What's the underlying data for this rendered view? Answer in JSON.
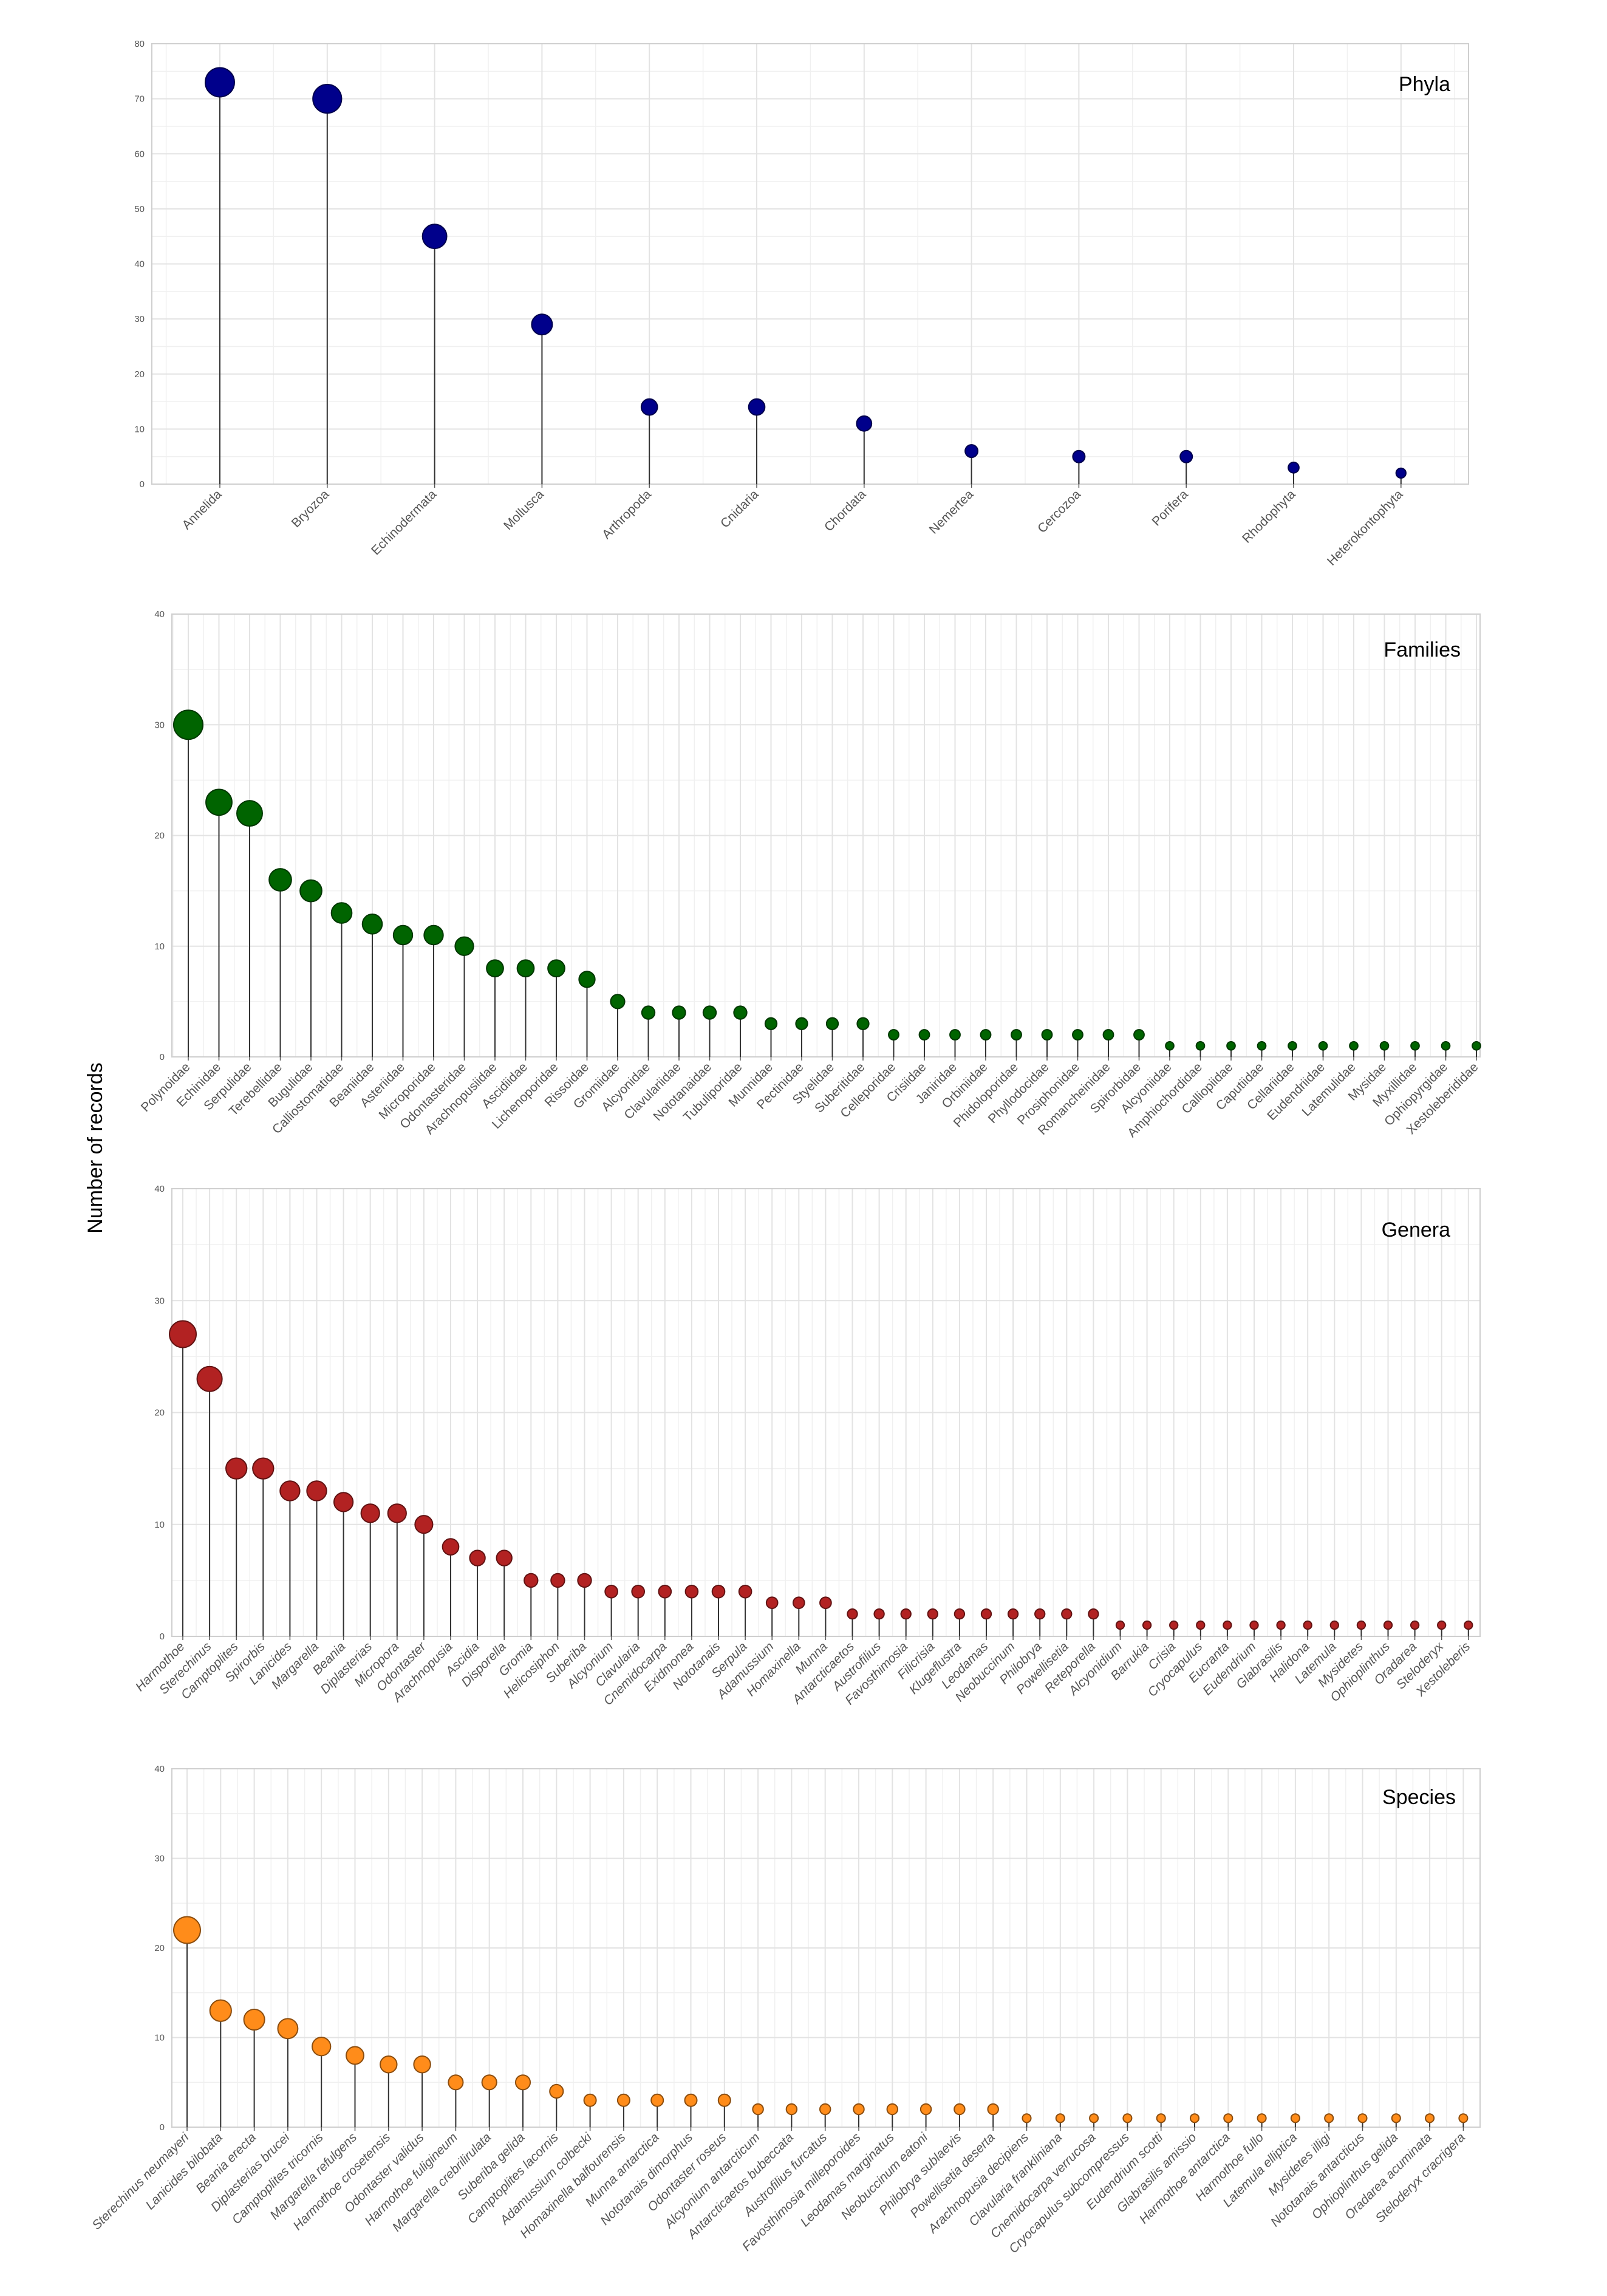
{
  "figure": {
    "ylabel": "Number of records"
  },
  "chart_data": [
    {
      "type": "lollipop",
      "title": "Phyla",
      "ylim": [
        0,
        80
      ],
      "yticks": [
        0,
        10,
        20,
        30,
        40,
        50,
        60,
        70,
        80
      ],
      "color": "#00008b",
      "categories": [
        "Annelida",
        "Bryozoa",
        "Echinodermata",
        "Mollusca",
        "Arthropoda",
        "Cnidaria",
        "Chordata",
        "Nemertea",
        "Cercozoa",
        "Porifera",
        "Rhodophyta",
        "Heterokontophyta"
      ],
      "values": [
        73,
        70,
        45,
        29,
        14,
        14,
        11,
        6,
        5,
        5,
        3,
        2
      ]
    },
    {
      "type": "lollipop",
      "title": "Families",
      "ylim": [
        0,
        40
      ],
      "yticks": [
        0,
        10,
        20,
        30,
        40
      ],
      "color": "#006400",
      "categories": [
        "Polynoidae",
        "Echinidae",
        "Serpulidae",
        "Terebellidae",
        "Bugulidae",
        "Calliostomatidae",
        "Beaniidae",
        "Asteriidae",
        "Microporidae",
        "Odontasteridae",
        "Arachnopusiidae",
        "Ascidiidae",
        "Lichenoporidae",
        "Rissoidae",
        "Gromiidae",
        "Alcyonidae",
        "Clavulariidae",
        "Nototanaidae",
        "Tubuliporidae",
        "Munnidae",
        "Pectinidae",
        "Styelidae",
        "Suberitidae",
        "Celleporidae",
        "Crisiidae",
        "Janiridae",
        "Orbiniidae",
        "Phidoloporidae",
        "Phyllodocidae",
        "Prosiphonidae",
        "Romancheinidae",
        "Spirorbidae",
        "Alcyoniidae",
        "Amphiochordidae",
        "Calliopiidae",
        "Caputiidae",
        "Cellariidae",
        "Eudendriidae",
        "Latemulidae",
        "Mysidae",
        "Myxillidae",
        "Ophiopyrgidae",
        "Xestoleberididae"
      ],
      "values": [
        30,
        23,
        22,
        16,
        15,
        13,
        12,
        11,
        11,
        10,
        8,
        8,
        8,
        7,
        5,
        4,
        4,
        4,
        4,
        3,
        3,
        3,
        3,
        2,
        2,
        2,
        2,
        2,
        2,
        2,
        2,
        2,
        1,
        1,
        1,
        1,
        1,
        1,
        1,
        1,
        1,
        1,
        1
      ]
    },
    {
      "type": "lollipop",
      "title": "Genera",
      "ylim": [
        0,
        40
      ],
      "yticks": [
        0,
        10,
        20,
        30,
        40
      ],
      "color": "#b22222",
      "categories": [
        "Harmothoe",
        "Sterechinus",
        "Camptoplites",
        "Spirorbis",
        "Lanicides",
        "Margarella",
        "Beania",
        "Diplasterias",
        "Micropora",
        "Odontaster",
        "Arachnopusia",
        "Ascidia",
        "Disporella",
        "Gromia",
        "Helicosiphon",
        "Suberiba",
        "Alcyonium",
        "Clavularia",
        "Cnemidocarpa",
        "Exidmonea",
        "Nototanais",
        "Serpula",
        "Adamussium",
        "Homaxinella",
        "Munna",
        "Antarcticaetos",
        "Austrofilius",
        "Favosthimosia",
        "Filicrisia",
        "Klugeflustra",
        "Leodamas",
        "Neobuccinum",
        "Philobrya",
        "Powellisetia",
        "Reteporella",
        "Alcyonidium",
        "Barrukia",
        "Crisia",
        "Cryocapulus",
        "Eucranta",
        "Eudendrium",
        "Glabrasilis",
        "Halidona",
        "Latemula",
        "Mysidetes",
        "Ophioplinthus",
        "Oradarea",
        "Steloderyx",
        "Xestoleberis"
      ],
      "values": [
        27,
        23,
        15,
        15,
        13,
        13,
        12,
        11,
        11,
        10,
        8,
        7,
        7,
        5,
        5,
        5,
        4,
        4,
        4,
        4,
        4,
        4,
        3,
        3,
        3,
        2,
        2,
        2,
        2,
        2,
        2,
        2,
        2,
        2,
        2,
        1,
        1,
        1,
        1,
        1,
        1,
        1,
        1,
        1,
        1,
        1,
        1,
        1,
        1
      ]
    },
    {
      "type": "lollipop",
      "title": "Species",
      "ylim": [
        0,
        40
      ],
      "yticks": [
        0,
        10,
        20,
        30,
        40
      ],
      "color": "#ff8c1a",
      "categories": [
        "Sterechinus neumayeri",
        "Lanicides bilobata",
        "Beania erecta",
        "Diplasterias brucei",
        "Camptoplites tricornis",
        "Margarella refulgens",
        "Harmothoe crosetensis",
        "Odontaster validus",
        "Harmothoe fuligineum",
        "Margarella crebrilirulata",
        "Suberiba gelida",
        "Camptoplites lacornis",
        "Adamussium colbecki",
        "Homaxinella balfourensis",
        "Munna antarctica",
        "Nototanais dimorphus",
        "Odontaster roseus",
        "Alcyonium antarcticum",
        "Antarcticaetos bubeccata",
        "Austrofilius furcatus",
        "Favosthimosia milleporoides",
        "Leodamas marginatus",
        "Neobuccinum eatoni",
        "Philobrya sublaevis",
        "Powellisetia deserta",
        "Arachnopusia decipiens",
        "Clavularia frankliniana",
        "Cnemidocarpa verrucosa",
        "Cryocapulus subcompressus",
        "Eudendrium scotti",
        "Glabrasilis amissio",
        "Harmothoe antarctica",
        "Harmothoe fullo",
        "Latemula elliptica",
        "Mysidetes illigi",
        "Nototanais antarcticus",
        "Ophioplinthus gelida",
        "Oradarea acuminata",
        "Steloderyx cracrigera"
      ],
      "values": [
        22,
        13,
        12,
        11,
        9,
        8,
        7,
        7,
        5,
        5,
        5,
        4,
        3,
        3,
        3,
        3,
        3,
        2,
        2,
        2,
        2,
        2,
        2,
        2,
        2,
        1,
        1,
        1,
        1,
        1,
        1,
        1,
        1,
        1,
        1,
        1,
        1,
        1,
        1
      ]
    }
  ]
}
